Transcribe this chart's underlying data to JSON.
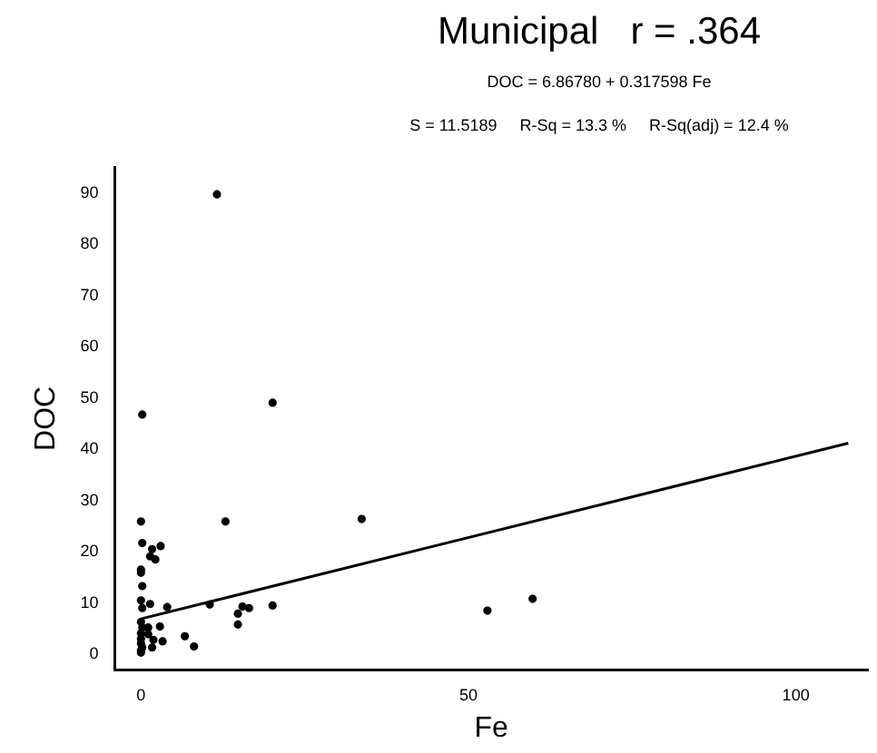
{
  "chart_data": {
    "type": "scatter",
    "title": "Municipal   r = .364",
    "subtitle": "DOC = 6.86780 + 0.317598 Fe",
    "annotations": [
      "S = 11.5189     R-Sq = 13.3 %     R-Sq(adj) = 12.4 %"
    ],
    "xlabel": "Fe",
    "ylabel": "DOC",
    "xlim": [
      -4,
      111
    ],
    "ylim": [
      -3,
      95
    ],
    "xticks": [
      0,
      50,
      100
    ],
    "yticks": [
      0,
      10,
      20,
      30,
      40,
      50,
      60,
      70,
      80,
      90
    ],
    "grid": false,
    "legend": false,
    "marker": "circle",
    "series": [
      {
        "color": "#000000",
        "x": [
          0.2,
          20.1,
          0,
          12.9,
          33.7,
          0.2,
          1.7,
          3.0,
          1.4,
          2.2,
          0,
          0,
          0.2,
          0,
          0.2,
          1.4,
          4.0,
          10.5,
          15.5,
          16.5,
          14.8,
          14.8,
          20.1,
          6.7,
          8.1,
          2.9,
          3.3,
          0,
          0.2,
          1.1,
          0,
          1.1,
          0,
          1.9,
          0,
          0.2,
          1.7,
          0,
          0,
          52.9,
          59.8,
          11.6
        ],
        "values": [
          46.8,
          49.1,
          25.9,
          25.9,
          26.4,
          21.7,
          20.5,
          21.1,
          19.1,
          18.5,
          16.5,
          15.9,
          13.3,
          10.5,
          9.0,
          9.8,
          9.2,
          9.7,
          9.3,
          9.0,
          7.9,
          5.8,
          9.5,
          3.5,
          1.5,
          5.4,
          2.5,
          6.3,
          5.2,
          5.2,
          4.1,
          3.9,
          3.0,
          2.8,
          2.1,
          1.3,
          1.3,
          0.7,
          0.3,
          8.5,
          10.8,
          89.8
        ]
      },
      {
        "type": "line",
        "color": "#000000",
        "marker": "none",
        "x": [
          0,
          108
        ],
        "values": [
          6.9,
          41.2
        ]
      }
    ]
  }
}
